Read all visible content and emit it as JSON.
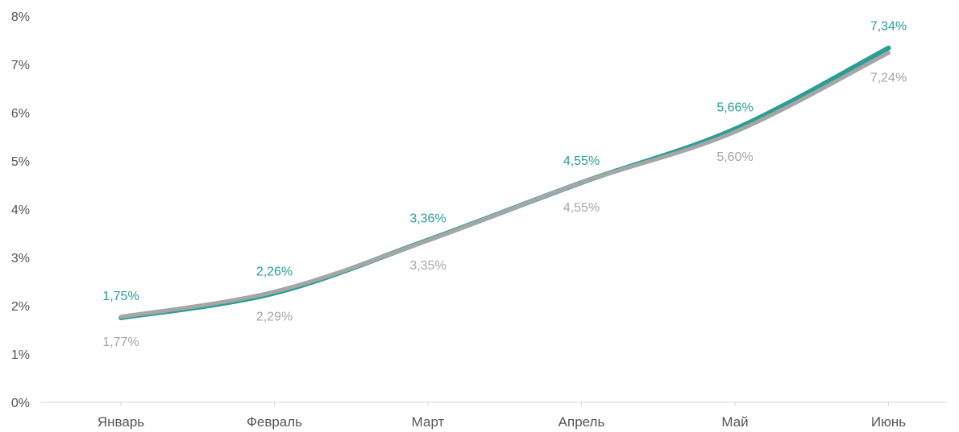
{
  "chart_data": {
    "type": "line",
    "title": "",
    "xlabel": "",
    "ylabel": "",
    "categories": [
      "Январь",
      "Февраль",
      "Март",
      "Апрель",
      "Май",
      "Июнь"
    ],
    "ylim": [
      0,
      8
    ],
    "y_ticks": [
      "0%",
      "1%",
      "2%",
      "3%",
      "4%",
      "5%",
      "6%",
      "7%",
      "8%"
    ],
    "grid": false,
    "legend": "none",
    "series": [
      {
        "values": [
          1.75,
          2.26,
          3.36,
          4.55,
          5.66,
          7.34
        ],
        "labels": [
          "1,75%",
          "2,26%",
          "3,36%",
          "4,55%",
          "5,66%",
          "7,34%"
        ],
        "color": "#2a9d96",
        "label_position": "above"
      },
      {
        "values": [
          1.77,
          2.29,
          3.35,
          4.55,
          5.6,
          7.24
        ],
        "labels": [
          "1,77%",
          "2,29%",
          "3,35%",
          "4,55%",
          "5,60%",
          "7,24%"
        ],
        "color": "#a6a6a6",
        "label_position": "below"
      }
    ]
  }
}
